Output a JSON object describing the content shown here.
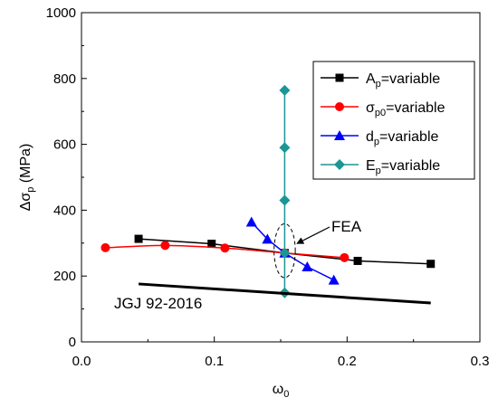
{
  "chart_data": {
    "type": "scatter",
    "x_axis": {
      "label_symbol": "ω",
      "label_sub": "0",
      "range": [
        0.0,
        0.3
      ],
      "ticks": [
        0.0,
        0.1,
        0.2,
        0.3
      ],
      "tick_labels": [
        "0.0",
        "0.1",
        "0.2",
        "0.3"
      ]
    },
    "y_axis": {
      "label_prefix": "Δσ",
      "label_sub": "p",
      "label_suffix": " (MPa)",
      "range": [
        0,
        1000
      ],
      "ticks": [
        0,
        200,
        400,
        600,
        800,
        1000
      ],
      "tick_labels": [
        "0",
        "200",
        "400",
        "600",
        "800",
        "1000"
      ]
    },
    "series": [
      {
        "name_main": "A",
        "name_sub": "p",
        "name_rest": "=variable",
        "color": "#000000",
        "marker": "square",
        "x": [
          0.043,
          0.098,
          0.153,
          0.208,
          0.263
        ],
        "y": [
          313,
          298,
          270,
          246,
          237
        ]
      },
      {
        "name_main": "σ",
        "name_sub": "p0",
        "name_rest": "=variable",
        "color": "#ff0000",
        "marker": "circle",
        "x": [
          0.018,
          0.063,
          0.108,
          0.153,
          0.198
        ],
        "y": [
          286,
          293,
          285,
          270,
          256
        ]
      },
      {
        "name_main": "d",
        "name_sub": "p",
        "name_rest": "=variable",
        "color": "#0000ff",
        "marker": "triangle",
        "x": [
          0.128,
          0.14,
          0.153,
          0.17,
          0.19
        ],
        "y": [
          364,
          312,
          270,
          228,
          188
        ]
      },
      {
        "name_main": "E",
        "name_sub": "p",
        "name_rest": "=variable",
        "color": "#1a9696",
        "marker": "diamond",
        "x": [
          0.153,
          0.153,
          0.153,
          0.153,
          0.153
        ],
        "y": [
          149,
          270,
          430,
          590,
          764
        ]
      }
    ],
    "reference_line": {
      "label": "JGJ 92-2016",
      "color": "#000000",
      "x": [
        0.043,
        0.263
      ],
      "y": [
        176,
        118
      ]
    },
    "annotation": {
      "label": "FEA",
      "center": [
        0.153,
        277
      ],
      "radius_x": 0.008,
      "radius_y": 82
    },
    "legend": {
      "placement": "top-right"
    }
  }
}
